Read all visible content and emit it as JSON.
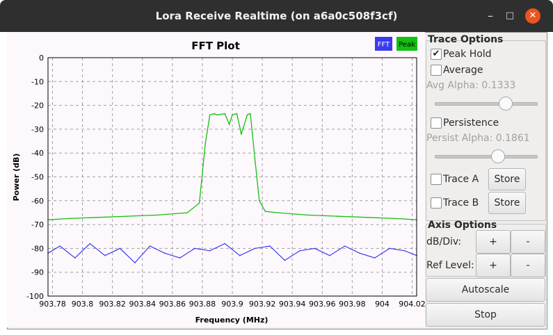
{
  "window": {
    "title": "Lora Receive Realtime (on a6a0c508f3cf)",
    "minimize_glyph": "–",
    "maximize_glyph": "□",
    "close_glyph": "✕"
  },
  "colors": {
    "fft": "#3a3af0",
    "peak": "#11c011",
    "plot_bg": "#fdf8fc",
    "grid": "#a0a0a0"
  },
  "chart_data": {
    "type": "line",
    "title": "FFT Plot",
    "xlabel": "Frequency (MHz)",
    "ylabel": "Power (dB)",
    "xlim": [
      903.777,
      904.023
    ],
    "ylim": [
      -100,
      0
    ],
    "x_ticks": [
      903.78,
      903.8,
      903.82,
      903.84,
      903.86,
      903.88,
      903.9,
      903.92,
      903.94,
      903.96,
      903.98,
      904,
      904.02
    ],
    "x_tick_labels": [
      "903.78",
      "903.8",
      "903.82",
      "903.84",
      "903.86",
      "903.88",
      "903.9",
      "903.92",
      "903.94",
      "903.96",
      "903.98",
      "904",
      "904.02"
    ],
    "y_ticks": [
      0,
      -10,
      -20,
      -30,
      -40,
      -50,
      -60,
      -70,
      -80,
      -90,
      -100
    ],
    "y_tick_labels": [
      "0",
      "-10",
      "-20",
      "-30",
      "-40",
      "-50",
      "-60",
      "-70",
      "-80",
      "-90",
      "-100"
    ],
    "grid": true,
    "legend_position": "top-right",
    "series": [
      {
        "name": "FFT",
        "color": "#3a3af0",
        "x": [
          903.777,
          903.785,
          903.795,
          903.805,
          903.815,
          903.825,
          903.835,
          903.845,
          903.855,
          903.865,
          903.875,
          903.885,
          903.895,
          903.905,
          903.915,
          903.925,
          903.935,
          903.945,
          903.955,
          903.965,
          903.975,
          903.985,
          903.995,
          904.005,
          904.015,
          904.023
        ],
        "y": [
          -82,
          -79,
          -84,
          -78,
          -83,
          -80,
          -86,
          -79,
          -82,
          -84,
          -80,
          -81,
          -78,
          -83,
          -80,
          -79,
          -85,
          -81,
          -80,
          -83,
          -79,
          -82,
          -84,
          -80,
          -81,
          -83
        ]
      },
      {
        "name": "Peak",
        "color": "#11c011",
        "x": [
          903.777,
          903.79,
          903.81,
          903.83,
          903.85,
          903.87,
          903.878,
          903.882,
          903.885,
          903.888,
          903.89,
          903.895,
          903.898,
          903.9,
          903.903,
          903.906,
          903.91,
          903.912,
          903.915,
          903.918,
          903.922,
          903.93,
          903.95,
          903.97,
          903.99,
          904.01,
          904.023
        ],
        "y": [
          -68,
          -67.5,
          -67,
          -66.5,
          -66,
          -65,
          -61,
          -36,
          -24,
          -23.5,
          -24,
          -23.5,
          -28,
          -24,
          -23.5,
          -32,
          -24,
          -23.5,
          -42,
          -60,
          -64.5,
          -65,
          -66,
          -66.5,
          -67,
          -67.5,
          -68
        ]
      }
    ]
  },
  "trace_options": {
    "title": "Trace Options",
    "peak_hold": {
      "label": "Peak Hold",
      "checked": true,
      "glyph": "✔"
    },
    "average": {
      "label": "Average",
      "checked": false
    },
    "avg_alpha": {
      "label": "Avg Alpha: 0.1333",
      "value": 0.1333
    },
    "persistence": {
      "label": "Persistence",
      "checked": false
    },
    "persist_alpha": {
      "label": "Persist Alpha: 0.1861",
      "value": 0.1861
    },
    "trace_a": {
      "label": "Trace A",
      "store_label": "Store"
    },
    "trace_b": {
      "label": "Trace B",
      "store_label": "Store"
    }
  },
  "axis_options": {
    "title": "Axis Options",
    "db_div": {
      "label": "dB/Div:",
      "plus": "+",
      "minus": "-"
    },
    "ref_level": {
      "label": "Ref Level:",
      "plus": "+",
      "minus": "-"
    }
  },
  "buttons": {
    "autoscale": "Autoscale",
    "stop": "Stop"
  }
}
